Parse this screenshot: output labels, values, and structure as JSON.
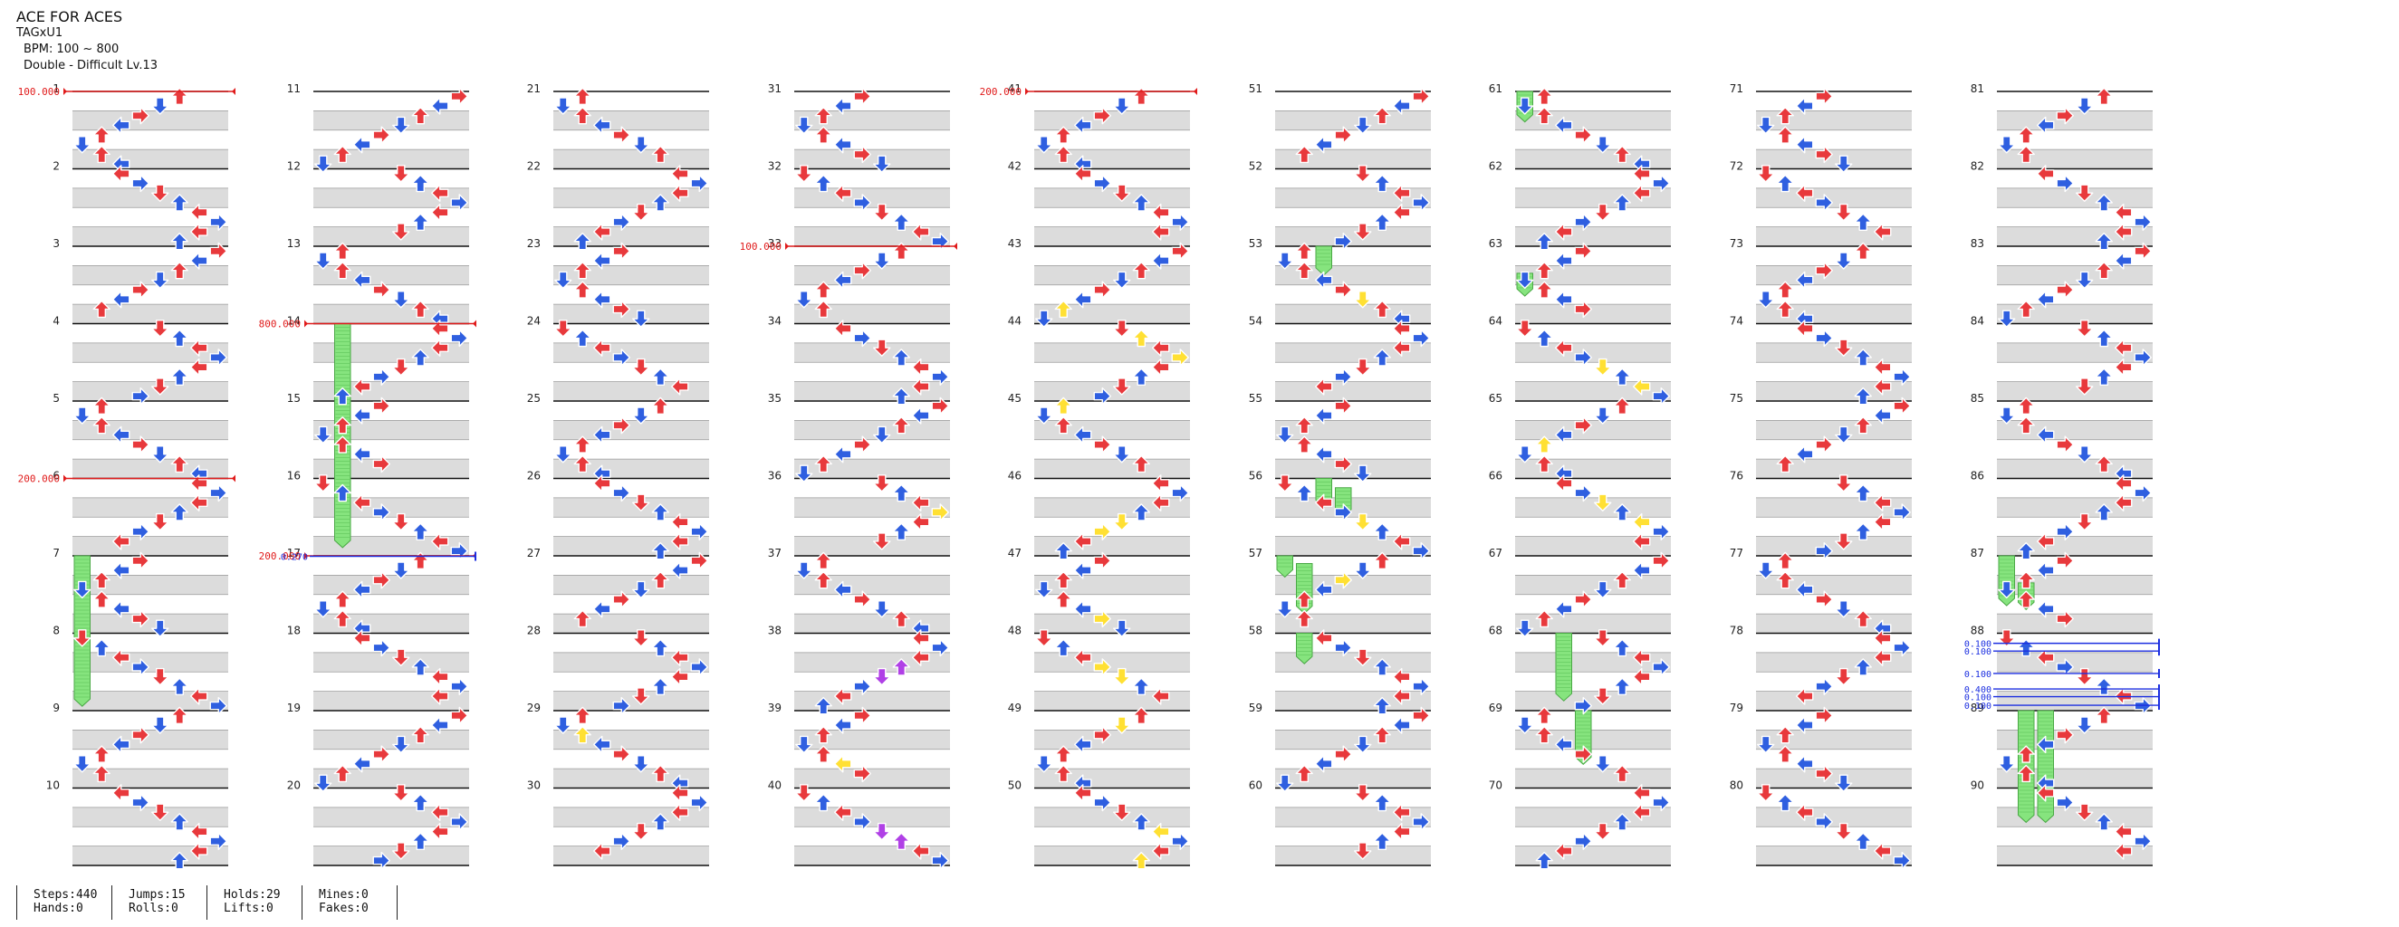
{
  "song": {
    "title": "ACE FOR ACES",
    "artist": "TAGxU1",
    "bpm_text": "BPM: 100 ~ 800",
    "chart_text": "Double - Difficult Lv.13"
  },
  "colors": {
    "page_bg": "#ffffff",
    "shaded_band": "#dcdcdc",
    "measure_line": "#111111",
    "beat_line": "#9a9a9a",
    "red_note": "#e8393c",
    "blue_note": "#2f5fe0",
    "yellow_note": "#ffe033",
    "purple_note": "#b040e6",
    "hold_body": "#86e47e",
    "bpm_marker": "#e01b1b",
    "stop_marker": "#1b2ee0"
  },
  "measure_numbers": [
    "1",
    "2",
    "3",
    "4",
    "5",
    "6",
    "7",
    "8",
    "9",
    "10",
    "11",
    "12",
    "13",
    "14",
    "15",
    "16",
    "17",
    "18",
    "19",
    "20",
    "21",
    "22",
    "23",
    "24",
    "25",
    "26",
    "27",
    "28",
    "29",
    "30",
    "31",
    "32",
    "33",
    "34",
    "35",
    "36",
    "37",
    "38",
    "39",
    "40",
    "41",
    "42",
    "43",
    "44",
    "45",
    "46",
    "47",
    "48",
    "49",
    "50",
    "51",
    "52",
    "53",
    "54",
    "55",
    "56",
    "57",
    "58",
    "59",
    "60",
    "61",
    "62",
    "63",
    "64",
    "65",
    "66",
    "67",
    "68",
    "69",
    "70",
    "71",
    "72",
    "73",
    "74",
    "75",
    "76",
    "77",
    "78",
    "79",
    "80",
    "81",
    "82",
    "83",
    "84",
    "85",
    "86",
    "87",
    "88",
    "89",
    "90"
  ],
  "bpm_changes": [
    {
      "label": "100.000",
      "measure": 1
    },
    {
      "label": "200.000",
      "measure": 6
    },
    {
      "label": "800.000",
      "measure": 14
    },
    {
      "label": "200.000",
      "measure": 17
    },
    {
      "label": "100.000",
      "measure": 33
    },
    {
      "label": "200.000",
      "measure": 41
    }
  ],
  "stops": [
    {
      "label": "0.270",
      "measure": 17
    },
    {
      "label": "0.100",
      "measure": 88
    },
    {
      "label": "0.100",
      "measure": 88
    },
    {
      "label": "0.100",
      "measure": 88
    },
    {
      "label": "0.400",
      "measure": 88
    },
    {
      "label": "0.100",
      "measure": 88
    },
    {
      "label": "0.100",
      "measure": 88
    }
  ],
  "stats": {
    "steps": "Steps:440",
    "hands": "Hands:0",
    "jumps": "Jumps:15",
    "rolls": "Rolls:0",
    "holds": "Holds:29",
    "lifts": "Lifts:0",
    "mines": "Mines:0",
    "fakes": "Fakes:0"
  }
}
